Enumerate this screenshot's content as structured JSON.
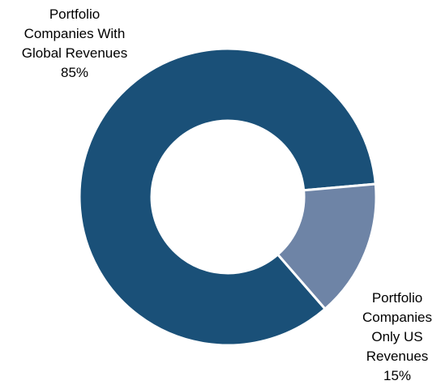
{
  "chart_data": {
    "type": "donut",
    "categories": [
      "Portfolio Companies With Global Revenues",
      "Portfolio Companies Only US Revenues"
    ],
    "values": [
      85,
      15
    ],
    "value_labels": [
      "85%",
      "15%"
    ],
    "colors": [
      "#1a5078",
      "#6e84a6"
    ]
  }
}
